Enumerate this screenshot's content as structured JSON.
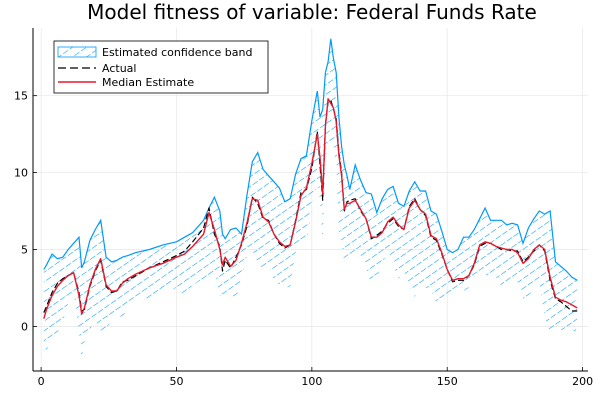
{
  "chart_data": {
    "type": "line",
    "title": "Model fitness of variable: Federal Funds Rate",
    "xlabel": "",
    "ylabel": "",
    "xlim": [
      -3,
      202
    ],
    "ylim": [
      -2.9,
      19.4
    ],
    "xticks": [
      0,
      50,
      100,
      150,
      200
    ],
    "yticks": [
      0,
      5,
      10,
      15
    ],
    "grid": true,
    "legend_position": "top-left",
    "colors": {
      "band": "#009AFA",
      "actual": "#000000",
      "median": "#E6192B"
    },
    "band": {
      "name": "Estimated confidence band",
      "x": [
        1,
        2,
        4,
        6,
        8,
        10,
        12,
        14,
        15,
        16,
        18,
        20,
        22,
        24,
        26,
        28,
        30,
        32,
        35,
        40,
        45,
        50,
        53,
        56,
        60,
        62,
        64,
        66,
        67,
        68,
        70,
        72,
        74,
        76,
        78,
        80,
        82,
        84,
        86,
        88,
        90,
        92,
        94,
        96,
        98,
        100,
        102,
        103,
        104,
        105,
        106,
        107,
        108,
        109,
        110,
        111,
        112,
        113,
        114,
        116,
        118,
        120,
        122,
        124,
        126,
        128,
        130,
        132,
        134,
        136,
        138,
        140,
        142,
        144,
        146,
        148,
        150,
        152,
        154,
        156,
        158,
        160,
        162,
        164,
        166,
        168,
        170,
        172,
        174,
        176,
        178,
        180,
        182,
        184,
        186,
        188,
        190,
        192,
        194,
        196,
        198
      ],
      "upper": [
        3.7,
        4.0,
        4.7,
        4.4,
        4.5,
        5.0,
        5.4,
        5.8,
        3.8,
        4.2,
        5.6,
        6.3,
        6.9,
        4.5,
        4.2,
        4.3,
        4.5,
        4.6,
        4.8,
        5.0,
        5.3,
        5.5,
        5.8,
        6.1,
        6.9,
        7.7,
        8.4,
        7.5,
        6.0,
        5.7,
        6.3,
        6.4,
        6.0,
        8.5,
        10.7,
        11.3,
        10.2,
        9.8,
        9.4,
        9.0,
        8.1,
        8.3,
        9.9,
        10.9,
        11.1,
        13.4,
        15.3,
        13.6,
        14.1,
        16.5,
        17.2,
        18.7,
        17.4,
        16.5,
        13.6,
        11.7,
        10.5,
        9.8,
        8.9,
        10.5,
        9.5,
        8.7,
        8.6,
        7.4,
        8.3,
        8.9,
        9.1,
        8.0,
        7.8,
        8.8,
        9.4,
        8.8,
        8.8,
        7.5,
        7.3,
        6.2,
        5.0,
        4.8,
        5.0,
        5.8,
        5.8,
        6.3,
        7.0,
        7.7,
        6.9,
        6.9,
        6.9,
        6.6,
        6.7,
        6.6,
        5.4,
        6.4,
        7.0,
        7.5,
        7.3,
        7.5,
        4.2,
        3.9,
        3.6,
        3.2,
        3.0
      ],
      "lower": [
        -2.3,
        -1.5,
        -1.0,
        -0.4,
        0.3,
        1.5,
        2.4,
        -0.4,
        -2.2,
        -1.0,
        -0.2,
        0.4,
        -0.3,
        -0.1,
        0.3,
        0.9,
        0.5,
        1.3,
        1.7,
        1.8,
        2.2,
        2.5,
        2.0,
        2.7,
        3.1,
        2.8,
        3.7,
        2.0,
        1.7,
        2.2,
        1.9,
        1.8,
        3.0,
        4.6,
        5.0,
        3.9,
        3.8,
        4.0,
        3.0,
        2.7,
        2.5,
        2.6,
        4.8,
        5.4,
        5.4,
        7.7,
        9.5,
        8.1,
        5.5,
        10.6,
        12.1,
        11.8,
        11.4,
        10.7,
        6.1,
        5.5,
        4.1,
        4.6,
        4.2,
        4.4,
        4.6,
        3.8,
        2.7,
        3.3,
        3.9,
        5.1,
        4.0,
        3.1,
        3.6,
        2.6,
        1.9,
        2.8,
        2.5,
        2.4,
        1.5,
        1.5,
        1.7,
        2.4,
        2.6,
        2.3,
        2.5,
        3.0,
        3.1,
        3.4,
        3.1,
        3.2,
        2.6,
        2.9,
        2.9,
        2.9,
        1.8,
        1.9,
        2.6,
        2.9,
        0.6,
        -0.5,
        -0.2,
        -0.2,
        -0.4,
        -0.2,
        -0.5
      ]
    },
    "series": [
      {
        "name": "Actual",
        "style": "dashed",
        "x": [
          1,
          2,
          4,
          6,
          8,
          10,
          12,
          14,
          15,
          16,
          18,
          20,
          22,
          24,
          26,
          28,
          30,
          32,
          35,
          40,
          45,
          50,
          53,
          56,
          60,
          62,
          64,
          66,
          67,
          68,
          70,
          72,
          74,
          76,
          78,
          80,
          82,
          84,
          86,
          88,
          90,
          92,
          94,
          96,
          98,
          100,
          102,
          103,
          104,
          105,
          106,
          107,
          108,
          109,
          110,
          111,
          112,
          113,
          114,
          116,
          118,
          120,
          122,
          124,
          126,
          128,
          130,
          132,
          134,
          136,
          138,
          140,
          142,
          144,
          146,
          148,
          150,
          152,
          154,
          156,
          158,
          160,
          162,
          164,
          166,
          168,
          170,
          172,
          174,
          176,
          178,
          180,
          182,
          184,
          186,
          188,
          190,
          192,
          194,
          196,
          198
        ],
        "values": [
          0.9,
          1.3,
          2.2,
          2.8,
          3.1,
          3.3,
          3.5,
          2.2,
          1.0,
          1.1,
          2.6,
          3.6,
          4.3,
          2.6,
          2.2,
          2.3,
          2.9,
          3.0,
          3.3,
          3.8,
          4.2,
          4.6,
          4.9,
          5.5,
          6.4,
          7.7,
          6.0,
          5.2,
          3.6,
          4.3,
          3.8,
          4.5,
          5.3,
          6.5,
          8.4,
          8.0,
          7.0,
          6.9,
          6.0,
          5.4,
          5.1,
          5.3,
          6.9,
          8.7,
          8.9,
          10.3,
          12.7,
          10.5,
          8.2,
          13.1,
          14.6,
          14.7,
          14.1,
          13.5,
          11.3,
          10.0,
          7.5,
          8.1,
          8.2,
          8.3,
          7.5,
          7.0,
          5.7,
          5.9,
          6.2,
          6.7,
          7.0,
          6.5,
          6.3,
          7.8,
          8.3,
          7.6,
          7.2,
          5.8,
          5.6,
          4.7,
          3.7,
          2.9,
          3.0,
          3.0,
          3.3,
          4.0,
          5.2,
          5.4,
          5.4,
          5.2,
          5.0,
          5.0,
          4.9,
          4.9,
          4.2,
          4.5,
          4.9,
          5.3,
          4.9,
          3.0,
          1.8,
          1.6,
          1.3,
          1.0,
          1.0
        ]
      },
      {
        "name": "Median Estimate",
        "style": "solid",
        "x": [
          1,
          2,
          4,
          6,
          8,
          10,
          12,
          14,
          15,
          16,
          18,
          20,
          22,
          24,
          26,
          28,
          30,
          32,
          35,
          40,
          45,
          50,
          53,
          56,
          60,
          62,
          64,
          66,
          67,
          68,
          70,
          72,
          74,
          76,
          78,
          80,
          82,
          84,
          86,
          88,
          90,
          92,
          94,
          96,
          98,
          100,
          102,
          103,
          104,
          105,
          106,
          107,
          108,
          109,
          110,
          111,
          112,
          113,
          114,
          116,
          118,
          120,
          122,
          124,
          126,
          128,
          130,
          132,
          134,
          136,
          138,
          140,
          142,
          144,
          146,
          148,
          150,
          152,
          154,
          156,
          158,
          160,
          162,
          164,
          166,
          168,
          170,
          172,
          174,
          176,
          178,
          180,
          182,
          184,
          186,
          188,
          190,
          192,
          194,
          196,
          198
        ],
        "values": [
          0.5,
          1.1,
          2.0,
          2.6,
          3.0,
          3.3,
          3.5,
          2.0,
          0.8,
          1.2,
          2.7,
          3.7,
          4.4,
          2.7,
          2.3,
          2.3,
          2.8,
          3.1,
          3.4,
          3.8,
          4.1,
          4.5,
          4.7,
          5.2,
          6.0,
          7.4,
          6.3,
          5.0,
          4.0,
          4.5,
          3.9,
          4.3,
          5.4,
          6.7,
          8.3,
          8.2,
          7.1,
          6.8,
          6.0,
          5.5,
          5.2,
          5.3,
          6.8,
          8.5,
          9.0,
          10.6,
          12.5,
          11.0,
          8.6,
          13.0,
          14.8,
          14.5,
          14.2,
          13.3,
          11.1,
          9.8,
          7.6,
          8.0,
          8.0,
          8.2,
          7.6,
          7.0,
          5.8,
          5.8,
          6.1,
          6.8,
          7.1,
          6.6,
          6.3,
          7.7,
          8.2,
          7.6,
          7.3,
          5.9,
          5.7,
          4.8,
          3.7,
          3.0,
          3.1,
          3.1,
          3.3,
          4.1,
          5.3,
          5.5,
          5.4,
          5.2,
          5.1,
          5.0,
          5.0,
          4.8,
          4.1,
          4.4,
          5.0,
          5.3,
          5.0,
          3.2,
          1.9,
          1.7,
          1.6,
          1.4,
          1.2
        ]
      }
    ]
  }
}
